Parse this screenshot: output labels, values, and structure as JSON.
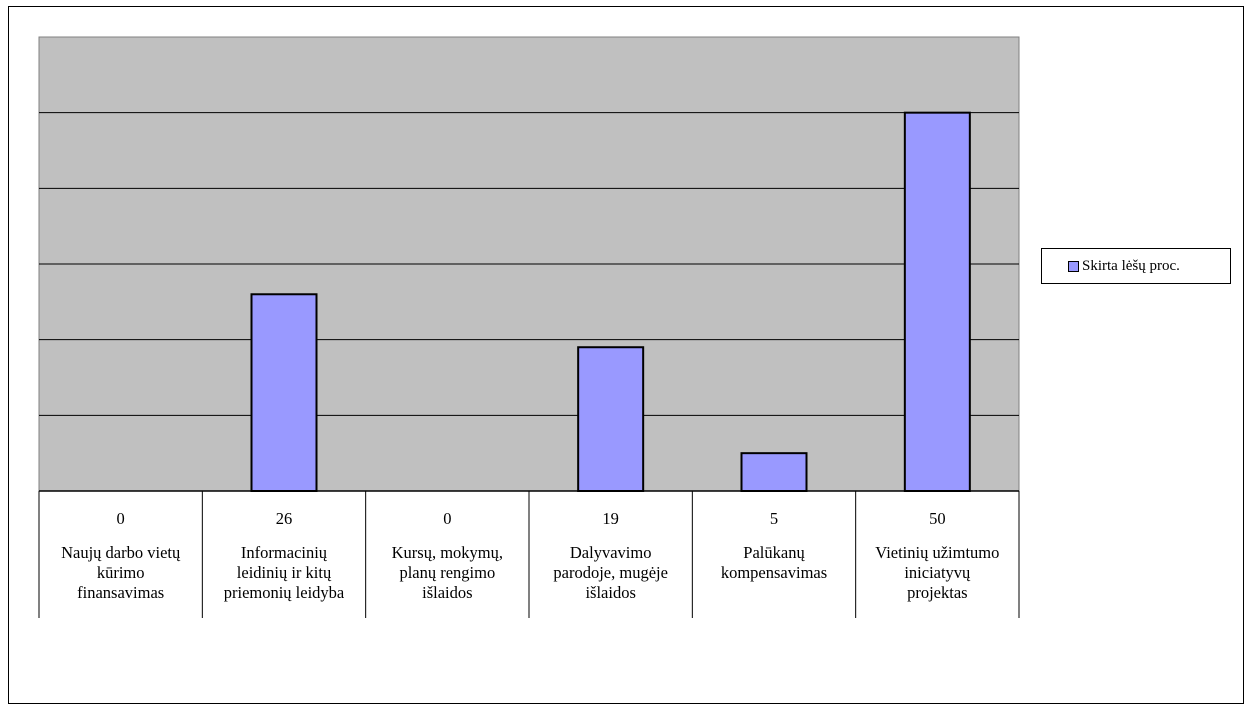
{
  "chart_data": {
    "type": "bar",
    "categories": [
      "Naujų darbo vietų kūrimo finansavimas",
      "Informacinių leidinių ir kitų priemonių leidyba",
      "Kursų, mokymų, planų rengimo išlaidos",
      "Dalyvavimo parodoje, mugėje išlaidos",
      "Palūkanų kompensavimas",
      "Vietinių užimtumo iniciatyvų projektas"
    ],
    "category_lines": [
      [
        "Naujų darbo vietų",
        "kūrimo",
        "finansavimas"
      ],
      [
        "Informacinių",
        "leidinių ir kitų",
        "priemonių leidyba"
      ],
      [
        "Kursų, mokymų,",
        "planų rengimo",
        "išlaidos"
      ],
      [
        "Dalyvavimo",
        "parodoje, mugėje",
        "išlaidos"
      ],
      [
        "Palūkanų",
        "kompensavimas"
      ],
      [
        "Vietinių užimtumo",
        "iniciatyvų",
        "projektas"
      ]
    ],
    "series": [
      {
        "name": "Skirta lėšų proc.",
        "values": [
          0,
          26,
          0,
          19,
          5,
          50
        ]
      }
    ],
    "value_labels": [
      "0",
      "26",
      "0",
      "19",
      "5",
      "50"
    ],
    "ylim": [
      0,
      60
    ],
    "grid": true,
    "legend": "right",
    "colors": {
      "bar": "#9999ff",
      "plot_bg": "#c0c0c0",
      "grid": "#000000"
    }
  }
}
